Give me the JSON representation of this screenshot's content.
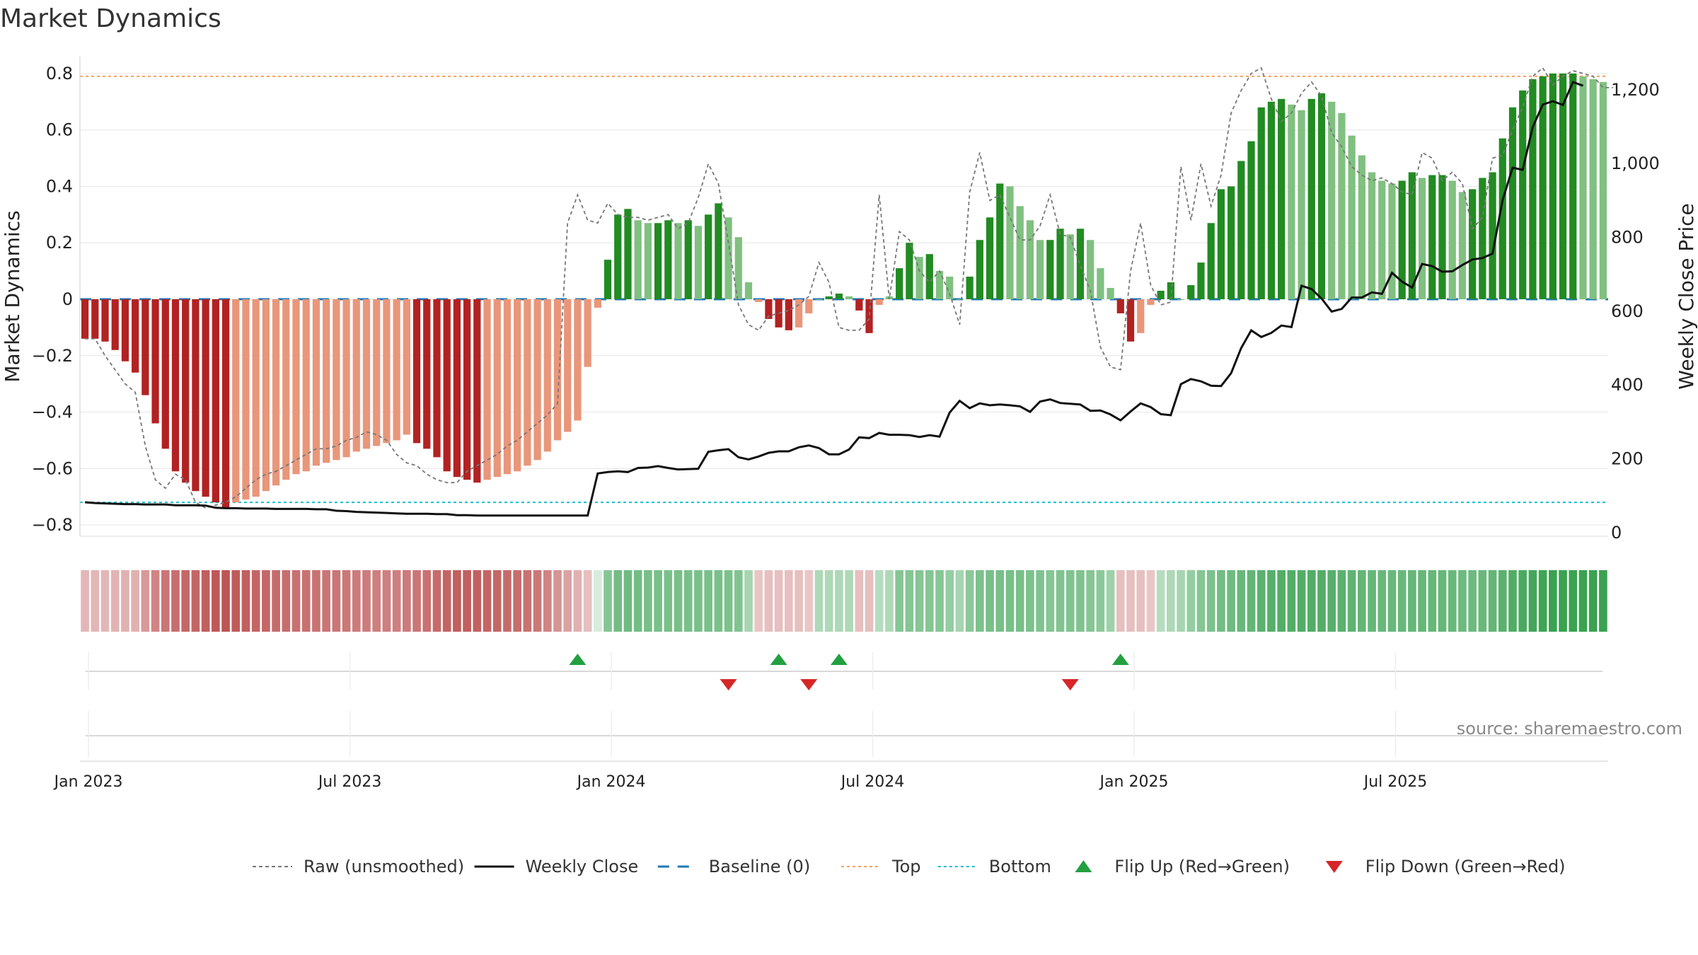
{
  "chart_data": {
    "type": "bar",
    "title": "Market Dynamics",
    "ylabel": "Market Dynamics",
    "y2label": "Weekly Close Price",
    "ylim": [
      -0.84,
      0.86
    ],
    "y2lim": [
      -10,
      1290
    ],
    "yticks": [
      "0.8",
      "0.6",
      "0.4",
      "0.2",
      "0",
      "−0.2",
      "−0.4",
      "−0.6",
      "−0.8"
    ],
    "y2ticks": [
      "1,200",
      "1,000",
      "800",
      "600",
      "400",
      "200",
      "0"
    ],
    "xticks": [
      "Jan 2023",
      "Jul 2023",
      "Jan 2024",
      "Jul 2024",
      "Jan 2025",
      "Jul 2025"
    ],
    "top_line": 0.79,
    "bottom_line": -0.72,
    "values": [
      -0.14,
      -0.14,
      -0.15,
      -0.18,
      -0.22,
      -0.26,
      -0.34,
      -0.44,
      -0.53,
      -0.61,
      -0.65,
      -0.68,
      -0.7,
      -0.72,
      -0.74,
      -0.72,
      -0.71,
      -0.7,
      -0.68,
      -0.66,
      -0.64,
      -0.62,
      -0.61,
      -0.59,
      -0.58,
      -0.57,
      -0.56,
      -0.54,
      -0.53,
      -0.52,
      -0.51,
      -0.5,
      -0.48,
      -0.51,
      -0.53,
      -0.56,
      -0.61,
      -0.63,
      -0.64,
      -0.65,
      -0.64,
      -0.63,
      -0.62,
      -0.61,
      -0.59,
      -0.57,
      -0.54,
      -0.5,
      -0.47,
      -0.43,
      -0.24,
      -0.03,
      0.14,
      0.3,
      0.32,
      0.28,
      0.27,
      0.27,
      0.28,
      0.27,
      0.28,
      0.26,
      0.3,
      0.34,
      0.29,
      0.22,
      0.06,
      -0.01,
      -0.07,
      -0.1,
      -0.11,
      -0.1,
      -0.05,
      0.0,
      0.01,
      0.02,
      0.01,
      -0.04,
      -0.12,
      -0.02,
      0.01,
      0.11,
      0.2,
      0.15,
      0.16,
      0.1,
      0.08,
      0.0,
      0.08,
      0.21,
      0.29,
      0.41,
      0.4,
      0.33,
      0.28,
      0.21,
      0.21,
      0.25,
      0.23,
      0.25,
      0.21,
      0.11,
      0.04,
      -0.05,
      -0.15,
      -0.12,
      -0.02,
      0.03,
      0.06,
      0.0,
      0.05,
      0.13,
      0.27,
      0.39,
      0.4,
      0.49,
      0.56,
      0.68,
      0.7,
      0.71,
      0.69,
      0.67,
      0.71,
      0.73,
      0.7,
      0.66,
      0.58,
      0.51,
      0.45,
      0.42,
      0.41,
      0.42,
      0.45,
      0.43,
      0.44,
      0.44,
      0.42,
      0.38,
      0.39,
      0.43,
      0.45,
      0.57,
      0.68,
      0.74,
      0.78,
      0.79,
      0.8,
      0.8,
      0.8,
      0.79,
      0.78,
      0.77
    ],
    "raw": [
      -0.14,
      -0.14,
      -0.2,
      -0.25,
      -0.3,
      -0.33,
      -0.52,
      -0.64,
      -0.67,
      -0.62,
      -0.64,
      -0.72,
      -0.74,
      -0.73,
      -0.72,
      -0.7,
      -0.67,
      -0.64,
      -0.62,
      -0.61,
      -0.59,
      -0.57,
      -0.55,
      -0.53,
      -0.53,
      -0.52,
      -0.5,
      -0.49,
      -0.47,
      -0.48,
      -0.5,
      -0.55,
      -0.58,
      -0.59,
      -0.62,
      -0.64,
      -0.65,
      -0.65,
      -0.61,
      -0.59,
      -0.57,
      -0.55,
      -0.52,
      -0.5,
      -0.47,
      -0.44,
      -0.41,
      -0.37,
      0.27,
      0.37,
      0.28,
      0.27,
      0.34,
      0.3,
      0.29,
      0.29,
      0.28,
      0.29,
      0.3,
      0.25,
      0.27,
      0.36,
      0.48,
      0.41,
      0.2,
      -0.02,
      -0.09,
      -0.11,
      -0.06,
      -0.05,
      -0.04,
      -0.02,
      0.01,
      0.13,
      0.06,
      -0.1,
      -0.11,
      -0.11,
      -0.07,
      0.37,
      0.0,
      0.24,
      0.21,
      0.1,
      0.06,
      0.1,
      0.02,
      -0.09,
      0.38,
      0.52,
      0.35,
      0.37,
      0.29,
      0.21,
      0.21,
      0.26,
      0.37,
      0.23,
      0.22,
      0.12,
      0.03,
      -0.17,
      -0.24,
      -0.25,
      0.1,
      0.27,
      0.05,
      -0.02,
      -0.01,
      0.47,
      0.28,
      0.48,
      0.33,
      0.44,
      0.66,
      0.74,
      0.8,
      0.82,
      0.71,
      0.63,
      0.66,
      0.73,
      0.77,
      0.72,
      0.59,
      0.54,
      0.47,
      0.44,
      0.42,
      0.43,
      0.41,
      0.38,
      0.37,
      0.52,
      0.5,
      0.42,
      0.45,
      0.41,
      0.25,
      0.29,
      0.5,
      0.51,
      0.6,
      0.68,
      0.79,
      0.82,
      0.76,
      0.79,
      0.81,
      0.8,
      0.79,
      0.75,
      0.75
    ],
    "price": [
      82,
      80,
      79,
      78,
      77,
      77,
      76,
      76,
      76,
      74,
      74,
      74,
      73,
      67,
      66,
      66,
      65,
      65,
      65,
      64,
      64,
      64,
      64,
      63,
      63,
      59,
      58,
      56,
      55,
      54,
      53,
      52,
      51,
      51,
      51,
      50,
      50,
      47,
      47,
      46,
      46,
      46,
      46,
      46,
      46,
      46,
      46,
      46,
      46,
      46,
      46,
      160,
      164,
      166,
      164,
      175,
      176,
      180,
      175,
      171,
      172,
      173,
      219,
      223,
      226,
      204,
      198,
      206,
      216,
      220,
      220,
      231,
      236,
      229,
      212,
      212,
      225,
      258,
      256,
      270,
      265,
      265,
      264,
      259,
      264,
      260,
      325,
      357,
      337,
      350,
      345,
      347,
      345,
      342,
      327,
      355,
      361,
      351,
      349,
      347,
      330,
      331,
      320,
      304,
      328,
      350,
      340,
      321,
      318,
      402,
      416,
      410,
      398,
      397,
      432,
      500,
      548,
      530,
      541,
      561,
      557,
      669,
      660,
      634,
      599,
      606,
      637,
      637,
      651,
      647,
      704,
      680,
      664,
      728,
      722,
      707,
      708,
      725,
      740,
      744,
      756,
      901,
      989,
      983,
      1099,
      1160,
      1169,
      1159,
      1221,
      1211
    ],
    "heat": [
      -0.25,
      -0.25,
      -0.25,
      -0.28,
      -0.3,
      -0.3,
      -0.45,
      -0.6,
      -0.7,
      -0.75,
      -0.8,
      -0.82,
      -0.85,
      -0.9,
      -0.92,
      -0.88,
      -0.85,
      -0.82,
      -0.8,
      -0.78,
      -0.76,
      -0.74,
      -0.73,
      -0.72,
      -0.7,
      -0.69,
      -0.68,
      -0.66,
      -0.65,
      -0.64,
      -0.64,
      -0.64,
      -0.66,
      -0.7,
      -0.74,
      -0.78,
      -0.82,
      -0.85,
      -0.85,
      -0.84,
      -0.82,
      -0.8,
      -0.78,
      -0.76,
      -0.72,
      -0.68,
      -0.6,
      -0.5,
      -0.4,
      -0.3,
      -0.2,
      0.0,
      0.5,
      0.6,
      0.62,
      0.6,
      0.58,
      0.56,
      0.56,
      0.58,
      0.56,
      0.56,
      0.56,
      0.56,
      0.55,
      0.52,
      0.3,
      -0.15,
      -0.2,
      -0.2,
      -0.2,
      -0.2,
      -0.15,
      0.25,
      0.25,
      0.25,
      0.25,
      -0.2,
      -0.2,
      0.2,
      0.25,
      0.5,
      0.5,
      0.5,
      0.5,
      0.48,
      0.4,
      0.3,
      0.45,
      0.55,
      0.58,
      0.58,
      0.58,
      0.58,
      0.55,
      0.52,
      0.5,
      0.52,
      0.52,
      0.52,
      0.5,
      0.45,
      0.35,
      -0.2,
      -0.2,
      -0.2,
      -0.15,
      0.2,
      0.25,
      0.3,
      0.4,
      0.5,
      0.55,
      0.6,
      0.62,
      0.66,
      0.7,
      0.75,
      0.78,
      0.8,
      0.8,
      0.8,
      0.8,
      0.8,
      0.78,
      0.75,
      0.72,
      0.7,
      0.68,
      0.66,
      0.66,
      0.66,
      0.68,
      0.68,
      0.68,
      0.68,
      0.66,
      0.64,
      0.64,
      0.66,
      0.7,
      0.75,
      0.82,
      0.85,
      0.9,
      0.92,
      0.95,
      0.95,
      0.95,
      0.95,
      0.95,
      0.95
    ],
    "flip_up": [
      49,
      69,
      75,
      103
    ],
    "flip_down": [
      64,
      72,
      98
    ],
    "colors": {
      "red_strong": "#b22222",
      "red_light": "#e9967a",
      "green_strong": "#228b22",
      "green_light": "#80c080",
      "raw": "#777777",
      "close": "#111111",
      "baseline": "#1f77b4",
      "top": "#ff9f5a",
      "bottom": "#17becf",
      "flip_up": "#22a040",
      "flip_down": "#d62728"
    },
    "legend": [
      {
        "label": "Raw (unsmoothed)",
        "kind": "raw"
      },
      {
        "label": "Weekly Close",
        "kind": "close"
      },
      {
        "label": "Baseline (0)",
        "kind": "baseline"
      },
      {
        "label": "Top",
        "kind": "top"
      },
      {
        "label": "Bottom",
        "kind": "bottom"
      },
      {
        "label": "Flip Up (Red→Green)",
        "kind": "flip_up"
      },
      {
        "label": "Flip Down (Green→Red)",
        "kind": "flip_down"
      }
    ],
    "source": "source: sharemaestro.com"
  }
}
